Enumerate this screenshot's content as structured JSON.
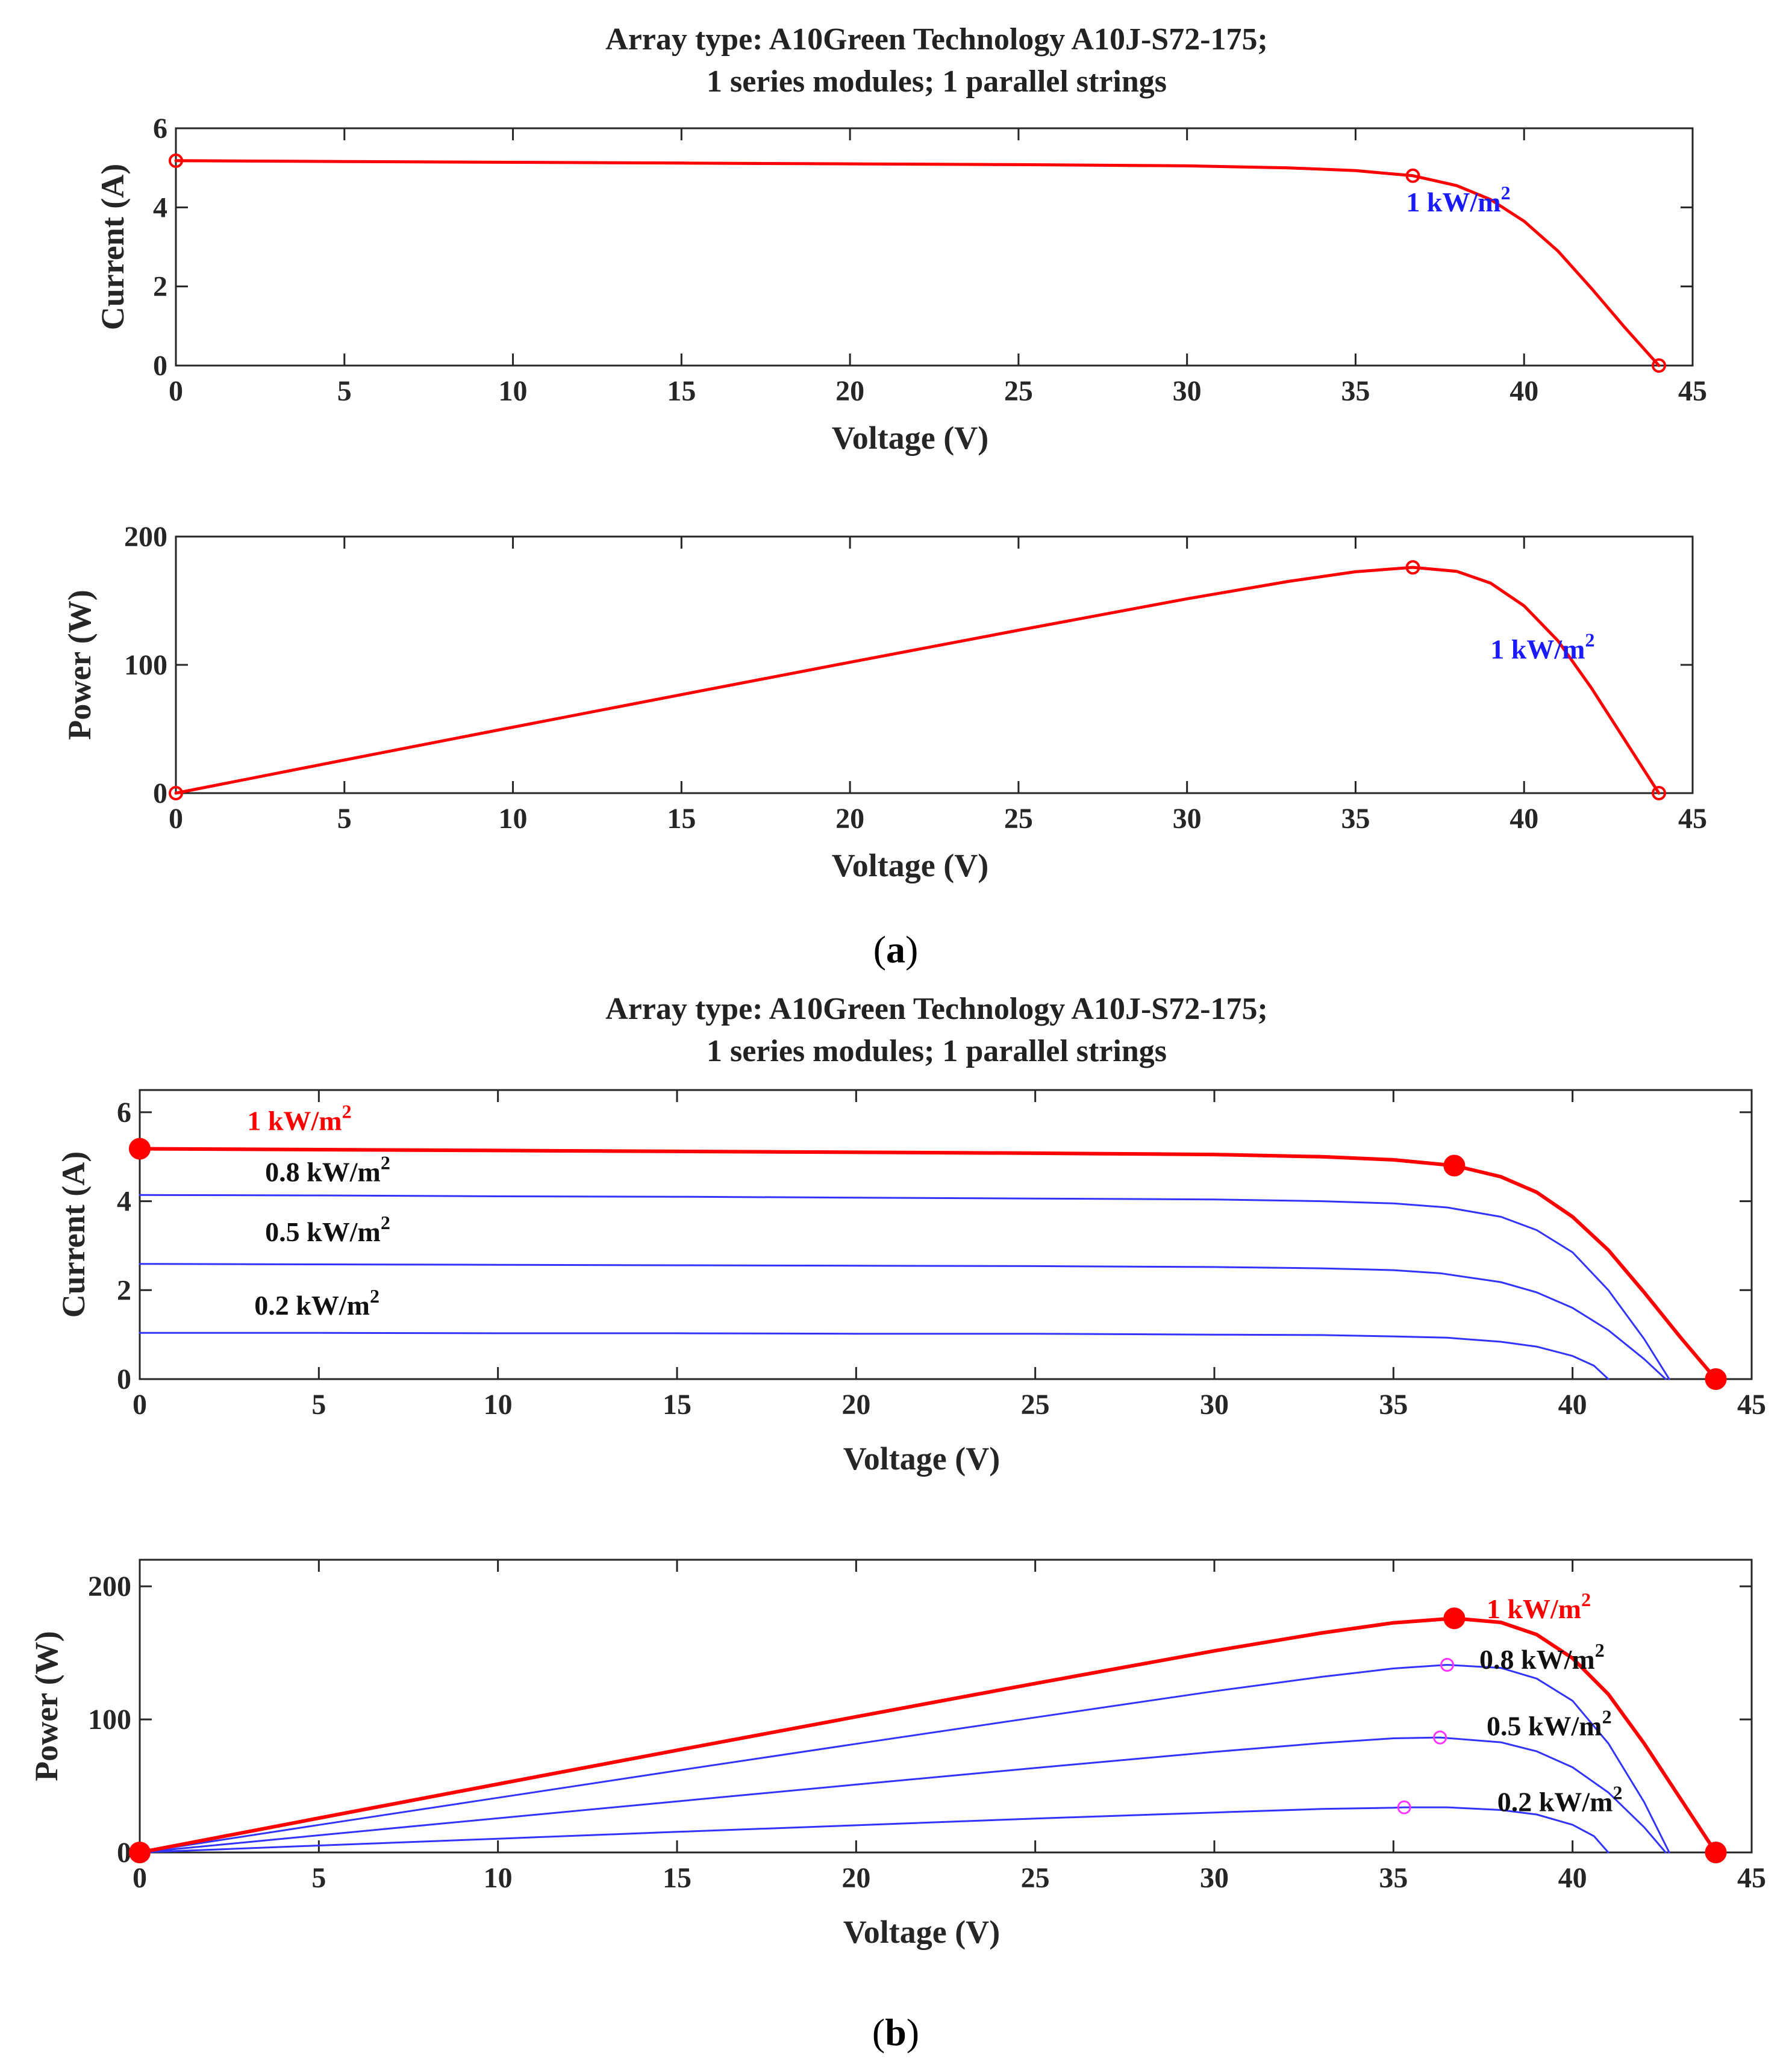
{
  "figure": {
    "panels": [
      {
        "label_pre": "(",
        "label_letter": "a",
        "label_post": ")"
      },
      {
        "label_pre": "(",
        "label_letter": "b",
        "label_post": ")"
      }
    ]
  },
  "chart_data": [
    {
      "id": "a-current",
      "type": "line",
      "title": [
        "Array type: A10Green Technology A10J-S72-175;",
        "1 series modules; 1 parallel strings"
      ],
      "xlabel": "Voltage (V)",
      "ylabel": "Current (A)",
      "xlim": [
        0,
        45
      ],
      "ylim": [
        0,
        6
      ],
      "xticks": [
        0,
        5,
        10,
        15,
        20,
        25,
        30,
        35,
        40,
        45
      ],
      "yticks": [
        0,
        2,
        4,
        6
      ],
      "series": [
        {
          "name": "1 kW/m2",
          "label_text": "1 kW/m",
          "label_sup": "2",
          "color": "#ff0000",
          "label_color": "#1a1aff",
          "x": [
            0,
            5,
            10,
            15,
            20,
            25,
            30,
            33,
            35,
            36.7,
            38,
            39,
            40,
            41,
            42,
            43,
            44
          ],
          "y": [
            5.18,
            5.16,
            5.14,
            5.12,
            5.1,
            5.08,
            5.05,
            5.0,
            4.93,
            4.8,
            4.55,
            4.2,
            3.65,
            2.9,
            1.95,
            0.95,
            0
          ],
          "markers": [
            [
              0,
              5.18
            ],
            [
              36.7,
              4.8
            ],
            [
              44,
              0
            ]
          ],
          "marker_style": "hollow",
          "label_at": [
            36.5,
            3.9
          ]
        }
      ]
    },
    {
      "id": "a-power",
      "type": "line",
      "xlabel": "Voltage (V)",
      "ylabel": "Power (W)",
      "xlim": [
        0,
        45
      ],
      "ylim": [
        0,
        200
      ],
      "xticks": [
        0,
        5,
        10,
        15,
        20,
        25,
        30,
        35,
        40,
        45
      ],
      "yticks": [
        0,
        100,
        200
      ],
      "series": [
        {
          "name": "1 kW/m2",
          "label_text": "1 kW/m",
          "label_sup": "2",
          "color": "#ff0000",
          "label_color": "#1a1aff",
          "x": [
            0,
            5,
            10,
            15,
            20,
            25,
            30,
            33,
            35,
            36.7,
            38,
            39,
            40,
            41,
            42,
            43,
            44
          ],
          "y": [
            0,
            25.8,
            51.4,
            76.8,
            102,
            127,
            151.5,
            165,
            172.6,
            176,
            172.9,
            163.8,
            146,
            118.9,
            81.9,
            40.9,
            0
          ],
          "markers": [
            [
              0,
              0
            ],
            [
              36.7,
              176
            ],
            [
              44,
              0
            ]
          ],
          "marker_style": "hollow",
          "label_at": [
            39,
            105
          ]
        }
      ]
    },
    {
      "id": "b-current",
      "type": "line",
      "title": [
        "Array type: A10Green Technology A10J-S72-175;",
        "1 series modules; 1 parallel strings"
      ],
      "xlabel": "Voltage (V)",
      "ylabel": "Current (A)",
      "xlim": [
        0,
        45
      ],
      "ylim": [
        0,
        6.5
      ],
      "xticks": [
        0,
        5,
        10,
        15,
        20,
        25,
        30,
        35,
        40,
        45
      ],
      "yticks": [
        0,
        2,
        4,
        6
      ],
      "series": [
        {
          "name": "1 kW/m2",
          "label_text": "1 kW/m",
          "label_sup": "2",
          "color": "#ff0000",
          "label_color": "#ff0000",
          "width": 6,
          "x": [
            0,
            5,
            10,
            15,
            20,
            25,
            30,
            33,
            35,
            36.7,
            38,
            39,
            40,
            41,
            42,
            43,
            44
          ],
          "y": [
            5.18,
            5.16,
            5.14,
            5.12,
            5.1,
            5.08,
            5.05,
            5.0,
            4.93,
            4.8,
            4.55,
            4.2,
            3.65,
            2.9,
            1.95,
            0.95,
            0
          ],
          "markers": [
            [
              0,
              5.18
            ],
            [
              36.7,
              4.8
            ],
            [
              44,
              0
            ]
          ],
          "marker_style": "filled",
          "label_at": [
            3,
            5.6
          ]
        },
        {
          "name": "0.8 kW/m2",
          "label_text": "0.8 kW/m",
          "label_sup": "2",
          "color": "#3333ff",
          "label_color": "#111111",
          "width": 3,
          "x": [
            0,
            5,
            10,
            15,
            20,
            25,
            30,
            33,
            35,
            36.5,
            38,
            39,
            40,
            41,
            42,
            42.7
          ],
          "y": [
            4.14,
            4.13,
            4.11,
            4.1,
            4.08,
            4.06,
            4.04,
            4.0,
            3.95,
            3.86,
            3.65,
            3.35,
            2.85,
            2.0,
            0.9,
            0
          ],
          "markers": [],
          "label_at": [
            3.5,
            4.45
          ]
        },
        {
          "name": "0.5 kW/m2",
          "label_text": "0.5 kW/m",
          "label_sup": "2",
          "color": "#3333ff",
          "label_color": "#111111",
          "width": 3,
          "x": [
            0,
            5,
            10,
            15,
            20,
            25,
            30,
            33,
            35,
            36.3,
            38,
            39,
            40,
            41,
            42,
            42.6
          ],
          "y": [
            2.59,
            2.58,
            2.57,
            2.56,
            2.55,
            2.54,
            2.52,
            2.49,
            2.45,
            2.38,
            2.18,
            1.95,
            1.6,
            1.1,
            0.45,
            0
          ],
          "markers": [],
          "label_at": [
            3.5,
            3.1
          ]
        },
        {
          "name": "0.2 kW/m2",
          "label_text": "0.2 kW/m",
          "label_sup": "2",
          "color": "#3333ff",
          "label_color": "#111111",
          "width": 3,
          "x": [
            0,
            5,
            10,
            15,
            20,
            25,
            30,
            33,
            35,
            36.5,
            38,
            39,
            40,
            40.6,
            41
          ],
          "y": [
            1.04,
            1.04,
            1.03,
            1.03,
            1.02,
            1.02,
            1.0,
            0.99,
            0.96,
            0.93,
            0.84,
            0.73,
            0.52,
            0.3,
            0
          ],
          "markers": [],
          "label_at": [
            3.2,
            1.45
          ]
        }
      ]
    },
    {
      "id": "b-power",
      "type": "line",
      "xlabel": "Voltage (V)",
      "ylabel": "Power (W)",
      "xlim": [
        0,
        45
      ],
      "ylim": [
        0,
        220
      ],
      "xticks": [
        0,
        5,
        10,
        15,
        20,
        25,
        30,
        35,
        40,
        45
      ],
      "yticks": [
        0,
        100,
        200
      ],
      "series": [
        {
          "name": "1 kW/m2",
          "label_text": "1 kW/m",
          "label_sup": "2",
          "color": "#ff0000",
          "label_color": "#ff0000",
          "width": 6,
          "x": [
            0,
            5,
            10,
            15,
            20,
            25,
            30,
            33,
            35,
            36.7,
            38,
            39,
            40,
            41,
            42,
            43,
            44
          ],
          "y": [
            0,
            25.8,
            51.4,
            76.8,
            102,
            127,
            151.5,
            165,
            172.6,
            176,
            172.9,
            163.8,
            146,
            118.9,
            81.9,
            40.9,
            0
          ],
          "markers": [
            [
              0,
              0
            ],
            [
              36.7,
              176
            ],
            [
              44,
              0
            ]
          ],
          "marker_style": "filled",
          "label_at": [
            37.6,
            176
          ]
        },
        {
          "name": "0.8 kW/m2",
          "label_text": "0.8 kW/m",
          "label_sup": "2",
          "color": "#3333ff",
          "label_color": "#111111",
          "width": 3,
          "x": [
            0,
            5,
            10,
            15,
            20,
            25,
            30,
            33,
            35,
            36.5,
            38,
            39,
            40,
            41,
            42,
            42.7
          ],
          "y": [
            0,
            20.7,
            41.1,
            61.5,
            81.6,
            101.5,
            121.2,
            132,
            138.3,
            141,
            138.7,
            130.7,
            114,
            82,
            37.8,
            0
          ],
          "markers": [
            [
              36.5,
              141
            ]
          ],
          "marker_style": "magenta",
          "label_at": [
            37.4,
            138
          ]
        },
        {
          "name": "0.5 kW/m2",
          "label_text": "0.5 kW/m",
          "label_sup": "2",
          "color": "#3333ff",
          "label_color": "#111111",
          "width": 3,
          "x": [
            0,
            5,
            10,
            15,
            20,
            25,
            30,
            33,
            35,
            36.3,
            38,
            39,
            40,
            41,
            42,
            42.6
          ],
          "y": [
            0,
            12.9,
            25.7,
            38.4,
            51,
            63.5,
            75.6,
            82.2,
            85.8,
            86.4,
            82.8,
            76,
            64,
            45.1,
            18.9,
            0
          ],
          "markers": [
            [
              36.3,
              86.4
            ]
          ],
          "marker_style": "magenta",
          "label_at": [
            37.6,
            88
          ]
        },
        {
          "name": "0.2 kW/m2",
          "label_text": "0.2 kW/m",
          "label_sup": "2",
          "color": "#3333ff",
          "label_color": "#111111",
          "width": 3,
          "x": [
            0,
            5,
            10,
            15,
            20,
            25,
            30,
            33,
            35,
            35.3,
            36.5,
            38,
            39,
            40,
            40.6,
            41
          ],
          "y": [
            0,
            5.2,
            10.3,
            15.5,
            20.4,
            25.5,
            30,
            32.7,
            33.6,
            33.9,
            33.9,
            31.9,
            28.5,
            20.8,
            12.2,
            0
          ],
          "markers": [
            [
              35.3,
              33.9
            ]
          ],
          "marker_style": "magenta",
          "label_at": [
            37.9,
            31
          ]
        }
      ]
    }
  ]
}
